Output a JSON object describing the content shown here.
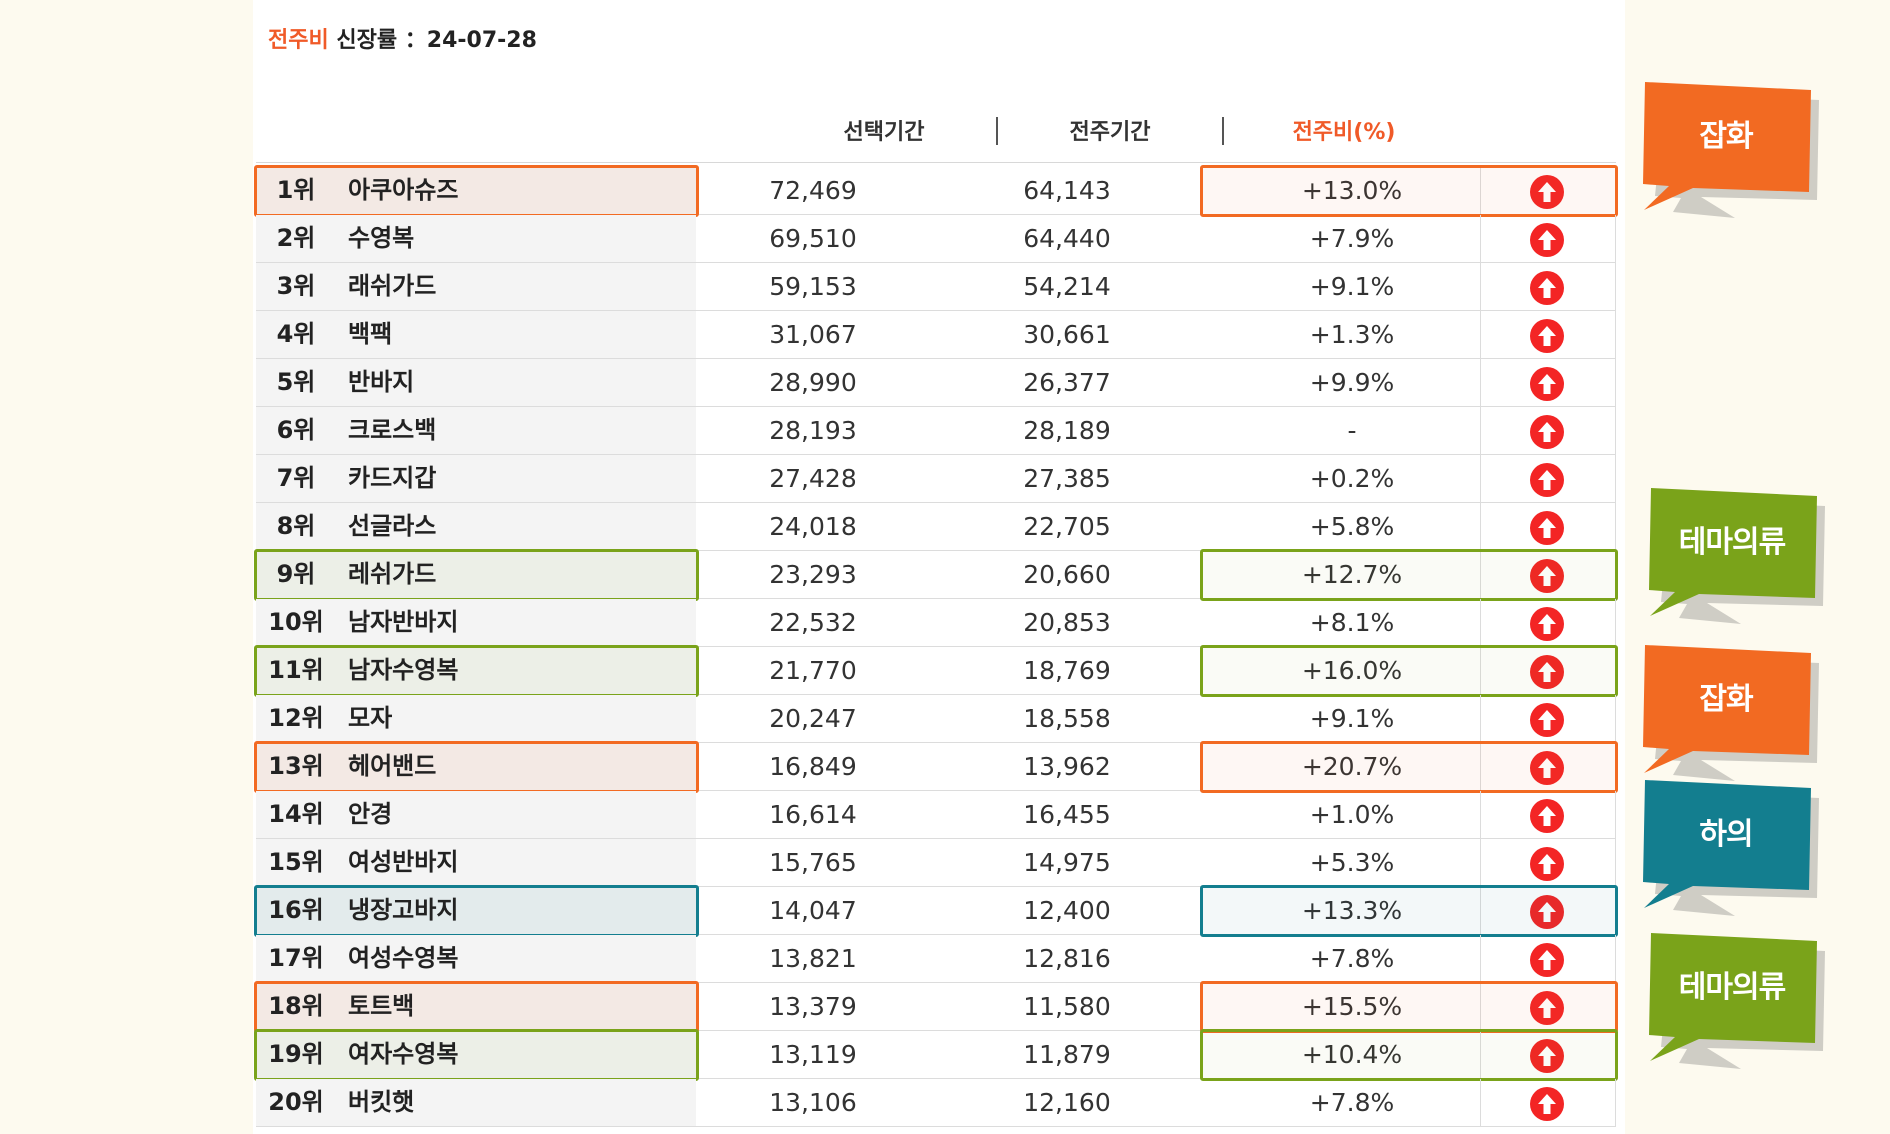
{
  "header": {
    "title_prefix": "전주비",
    "title_main": "신장률 ：24-07-28"
  },
  "columns": {
    "current": "선택기간",
    "previous": "전주기간",
    "pct": "전주비(%)",
    "separator": "|"
  },
  "colors": {
    "orange": "#f26a22",
    "green": "#7aa31a",
    "teal": "#137e8f",
    "arrow_red": "#f32525",
    "title_red": "#f05a28"
  },
  "rows": [
    {
      "rank": "1위",
      "name": "아쿠아슈즈",
      "current": "72,469",
      "previous": "64,143",
      "pct": "+13.0%",
      "trend": "up-arrow-icon",
      "highlight": "orange"
    },
    {
      "rank": "2위",
      "name": "수영복",
      "current": "69,510",
      "previous": "64,440",
      "pct": "+7.9%",
      "trend": "up-arrow-icon",
      "highlight": ""
    },
    {
      "rank": "3위",
      "name": "래쉬가드",
      "current": "59,153",
      "previous": "54,214",
      "pct": "+9.1%",
      "trend": "up-arrow-icon",
      "highlight": ""
    },
    {
      "rank": "4위",
      "name": "백팩",
      "current": "31,067",
      "previous": "30,661",
      "pct": "+1.3%",
      "trend": "up-arrow-icon",
      "highlight": ""
    },
    {
      "rank": "5위",
      "name": "반바지",
      "current": "28,990",
      "previous": "26,377",
      "pct": "+9.9%",
      "trend": "up-arrow-icon",
      "highlight": ""
    },
    {
      "rank": "6위",
      "name": "크로스백",
      "current": "28,193",
      "previous": "28,189",
      "pct": "-",
      "trend": "up-arrow-icon",
      "highlight": ""
    },
    {
      "rank": "7위",
      "name": "카드지갑",
      "current": "27,428",
      "previous": "27,385",
      "pct": "+0.2%",
      "trend": "up-arrow-icon",
      "highlight": ""
    },
    {
      "rank": "8위",
      "name": "선글라스",
      "current": "24,018",
      "previous": "22,705",
      "pct": "+5.8%",
      "trend": "up-arrow-icon",
      "highlight": ""
    },
    {
      "rank": "9위",
      "name": "레쉬가드",
      "current": "23,293",
      "previous": "20,660",
      "pct": "+12.7%",
      "trend": "up-arrow-icon",
      "highlight": "green"
    },
    {
      "rank": "10위",
      "name": "남자반바지",
      "current": "22,532",
      "previous": "20,853",
      "pct": "+8.1%",
      "trend": "up-arrow-icon",
      "highlight": ""
    },
    {
      "rank": "11위",
      "name": "남자수영복",
      "current": "21,770",
      "previous": "18,769",
      "pct": "+16.0%",
      "trend": "up-arrow-icon",
      "highlight": "green"
    },
    {
      "rank": "12위",
      "name": "모자",
      "current": "20,247",
      "previous": "18,558",
      "pct": "+9.1%",
      "trend": "up-arrow-icon",
      "highlight": ""
    },
    {
      "rank": "13위",
      "name": "헤어밴드",
      "current": "16,849",
      "previous": "13,962",
      "pct": "+20.7%",
      "trend": "up-arrow-icon",
      "highlight": "orange"
    },
    {
      "rank": "14위",
      "name": "안경",
      "current": "16,614",
      "previous": "16,455",
      "pct": "+1.0%",
      "trend": "up-arrow-icon",
      "highlight": ""
    },
    {
      "rank": "15위",
      "name": "여성반바지",
      "current": "15,765",
      "previous": "14,975",
      "pct": "+5.3%",
      "trend": "up-arrow-icon",
      "highlight": ""
    },
    {
      "rank": "16위",
      "name": "냉장고바지",
      "current": "14,047",
      "previous": "12,400",
      "pct": "+13.3%",
      "trend": "up-arrow-icon",
      "highlight": "teal"
    },
    {
      "rank": "17위",
      "name": "여성수영복",
      "current": "13,821",
      "previous": "12,816",
      "pct": "+7.8%",
      "trend": "up-arrow-icon",
      "highlight": ""
    },
    {
      "rank": "18위",
      "name": "토트백",
      "current": "13,379",
      "previous": "11,580",
      "pct": "+15.5%",
      "trend": "up-arrow-icon",
      "highlight": "orange"
    },
    {
      "rank": "19위",
      "name": "여자수영복",
      "current": "13,119",
      "previous": "11,879",
      "pct": "+10.4%",
      "trend": "up-arrow-icon",
      "highlight": "green"
    },
    {
      "rank": "20위",
      "name": "버킷햇",
      "current": "13,106",
      "previous": "12,160",
      "pct": "+7.8%",
      "trend": "up-arrow-icon",
      "highlight": ""
    }
  ],
  "callouts": [
    {
      "label": "잡화",
      "color": "#f26a22"
    },
    {
      "label": "테마의류",
      "color": "#7aa31a"
    },
    {
      "label": "잡화",
      "color": "#f26a22"
    },
    {
      "label": "하의",
      "color": "#137e8f"
    },
    {
      "label": "테마의류",
      "color": "#7aa31a"
    }
  ]
}
